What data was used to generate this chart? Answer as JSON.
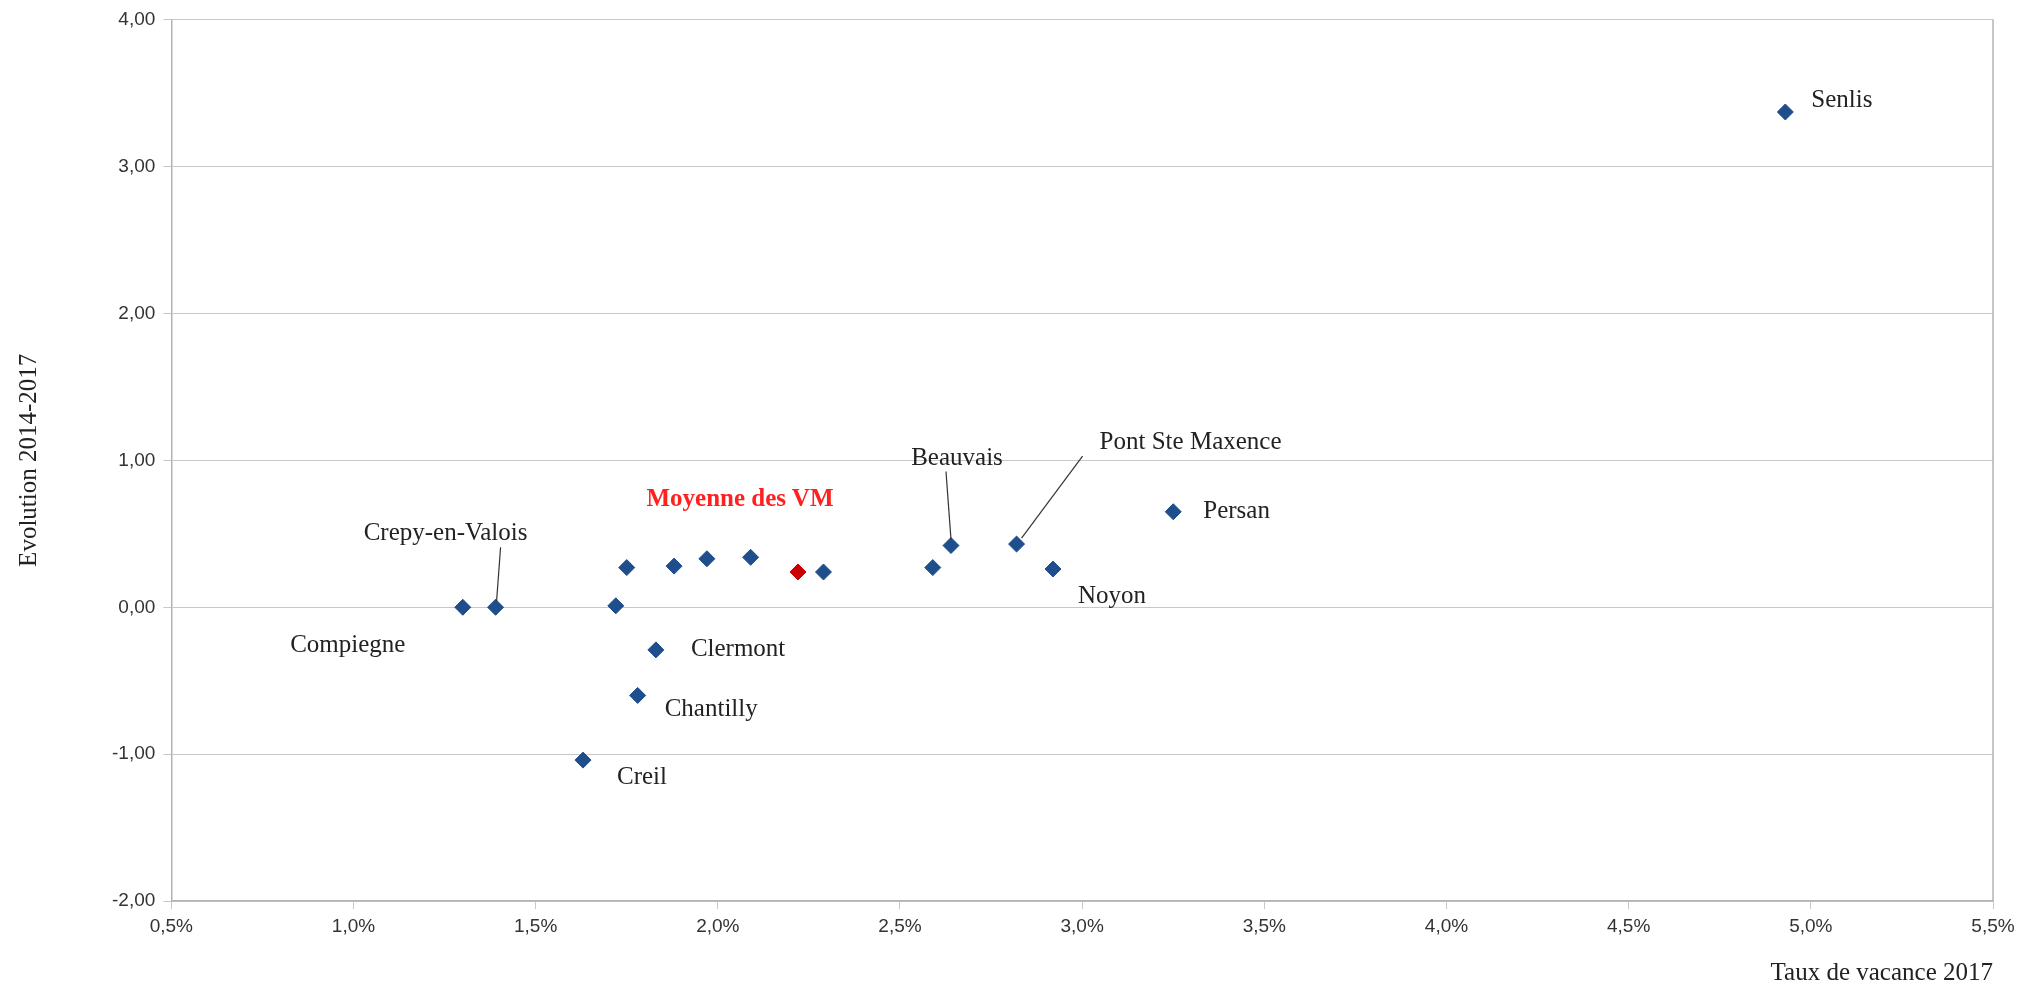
{
  "chart_data": {
    "type": "scatter",
    "xlabel": "Taux de vacance 2017",
    "ylabel": "Evolution 2014-2017",
    "xlim": [
      0.5,
      5.5
    ],
    "xticks": [
      {
        "value": 0.5,
        "label": "0,5%"
      },
      {
        "value": 1,
        "label": "1,0%"
      },
      {
        "value": 1.5,
        "label": "1,5%"
      },
      {
        "value": 2,
        "label": "2,0%"
      },
      {
        "value": 2.5,
        "label": "2,5%"
      },
      {
        "value": 3,
        "label": "3,0%"
      },
      {
        "value": 3.5,
        "label": "3,5%"
      },
      {
        "value": 4,
        "label": "4,0%"
      },
      {
        "value": 4.5,
        "label": "4,5%"
      },
      {
        "value": 5,
        "label": "5,0%"
      },
      {
        "value": 5.5,
        "label": "5,5%"
      }
    ],
    "ylim": [
      -2,
      4
    ],
    "yticks": [
      {
        "value": -2,
        "label": "-2,00"
      },
      {
        "value": -1,
        "label": "-1,00"
      },
      {
        "value": 0,
        "label": "0,00"
      },
      {
        "value": 1,
        "label": "1,00"
      },
      {
        "value": 2,
        "label": "2,00"
      },
      {
        "value": 3,
        "label": "3,00"
      },
      {
        "value": 4,
        "label": "4,00"
      }
    ],
    "grid": "y",
    "legend": false,
    "marker": "diamond",
    "series": [
      {
        "color": "#1f4e8c",
        "x": [
          1.3,
          1.39,
          1.72,
          1.75,
          1.88,
          1.97,
          2.09,
          2.29,
          1.83,
          1.78,
          1.63,
          2.59,
          2.64,
          2.82,
          2.92,
          3.25,
          4.93
        ],
        "values": [
          0,
          0,
          0.01,
          0.27,
          0.28,
          0.33,
          0.34,
          0.24,
          -0.29,
          -0.6,
          -1.04,
          0.27,
          0.42,
          0.43,
          0.26,
          0.65,
          3.37
        ]
      },
      {
        "name": "Moyenne des VM",
        "color": "#cc0000",
        "x": [
          2.22
        ],
        "values": [
          0.24
        ]
      }
    ],
    "annotations": [
      {
        "text": "Senlis",
        "x": 4.93,
        "y": 3.37
      },
      {
        "text": "Persan",
        "x": 3.25,
        "y": 0.65
      },
      {
        "text": "Pont Ste Maxence",
        "x": 2.82,
        "y": 0.43
      },
      {
        "text": "Beauvais",
        "x": 2.64,
        "y": 0.42
      },
      {
        "text": "Noyon",
        "x": 2.92,
        "y": 0.26
      },
      {
        "text": "Crepy-en-Valois",
        "x": 1.39,
        "y": 0
      },
      {
        "text": "Compiegne",
        "x": 1.3,
        "y": 0
      },
      {
        "text": "Clermont",
        "x": 1.83,
        "y": -0.29
      },
      {
        "text": "Chantilly",
        "x": 1.78,
        "y": -0.6
      },
      {
        "text": "Creil",
        "x": 1.63,
        "y": -1.04
      }
    ]
  }
}
